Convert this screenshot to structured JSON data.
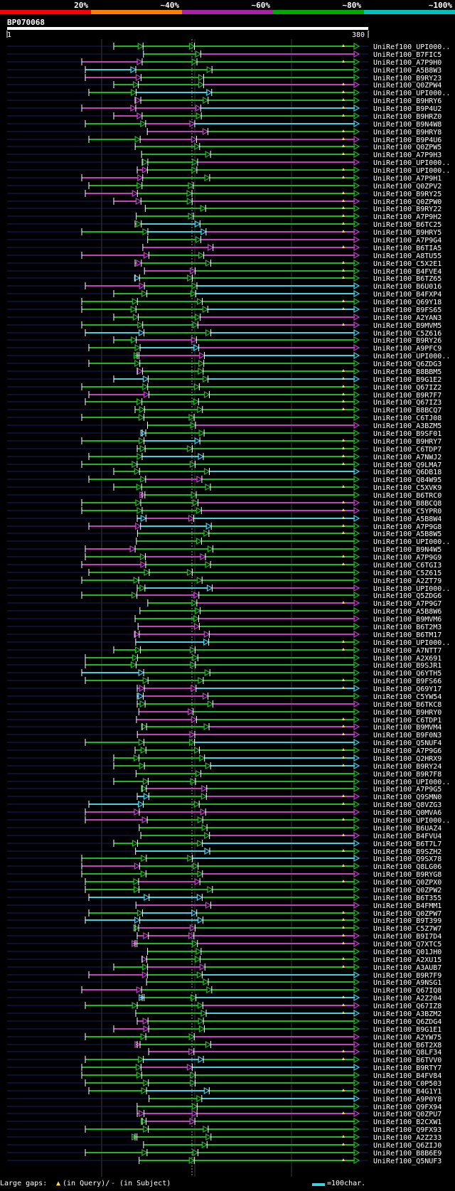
{
  "query_id": "BP070068",
  "scale": {
    "start": "1",
    "end": "380"
  },
  "identity_bar": [
    {
      "label": "20%",
      "color": "#ff0000"
    },
    {
      "label": "~40%",
      "color": "#ff7f00"
    },
    {
      "label": "~60%",
      "color": "#aa22aa"
    },
    {
      "label": "~80%",
      "color": "#00aa00"
    },
    {
      "label": "~100%",
      "color": "#00c0c0"
    }
  ],
  "colors": {
    "green": "#1db81d",
    "magenta": "#c040c0",
    "cyan": "#40d0e0",
    "navy": "#1c1c66",
    "guide": "#3a3a3a"
  },
  "footer": {
    "large_gaps": "Large gaps:",
    "in_query": "(in Query)/",
    "in_subject": "(in Subject)",
    "scale_note": "=100char."
  },
  "chart_data": {
    "type": "alignment",
    "query_length": 380,
    "subjects": [
      "UniRef100_UPI000..",
      "UniRef100_B7FIC5",
      "UniRef100_A7P9H0",
      "UniRef100_A5B8W3",
      "UniRef100_B9RY23",
      "UniRef100_Q0ZPW4",
      "UniRef100_UPI000..",
      "UniRef100_B9HRY6",
      "UniRef100_B9P4U2",
      "UniRef100_B9HRZ0",
      "UniRef100_B9N4W8",
      "UniRef100_B9HRY8",
      "UniRef100_B9P4U6",
      "UniRef100_Q0ZPW5",
      "UniRef100_A7P9H3",
      "UniRef100_UPI000..",
      "UniRef100_UPI000..",
      "UniRef100_A7P9H1",
      "UniRef100_Q0ZPV2",
      "UniRef100_B9RY25",
      "UniRef100_Q0ZPW0",
      "UniRef100_B9RY22",
      "UniRef100_A7P9H2",
      "UniRef100_B6TC25",
      "UniRef100_B9HRY5",
      "UniRef100_A7P9G4",
      "UniRef100_B6TIA5",
      "UniRef100_A8TU55",
      "UniRef100_C5X2E1",
      "UniRef100_B4FVE4",
      "UniRef100_B6TZ65",
      "UniRef100_B6U016",
      "UniRef100_B4FXP4",
      "UniRef100_Q69Y18",
      "UniRef100_B9FS65",
      "UniRef100_A2YAN3",
      "UniRef100_B9MVM5",
      "UniRef100_C5Z616",
      "UniRef100_B9RY26",
      "UniRef100_A9PFC9",
      "UniRef100_UPI000..",
      "UniRef100_Q6ZDG3",
      "UniRef100_B8BBM5",
      "UniRef100_B9G1E2",
      "UniRef100_Q67IZ2",
      "UniRef100_B9R7F7",
      "UniRef100_Q67IZ3",
      "UniRef100_B8BCQ7",
      "UniRef100_C6TJ08",
      "UniRef100_A3BZM5",
      "UniRef100_B9SF01",
      "UniRef100_B9HRY7",
      "UniRef100_C6TDP7",
      "UniRef100_A7NWJ2",
      "UniRef100_Q9LMA7",
      "UniRef100_Q6DB18",
      "UniRef100_Q84W95",
      "UniRef100_C5XVK9",
      "UniRef100_B6TRC0",
      "UniRef100_B8BCQ8",
      "UniRef100_C5YPR0",
      "UniRef100_A5B8W4",
      "UniRef100_A7P9G8",
      "UniRef100_A5B8W5",
      "UniRef100_UPI000..",
      "UniRef100_B9N4W5",
      "UniRef100_A7P9G9",
      "UniRef100_C6TGI3",
      "UniRef100_C5Z615",
      "UniRef100_A2ZT79",
      "UniRef100_UPI000..",
      "UniRef100_Q5ZDG6",
      "UniRef100_A7P9G7",
      "UniRef100_A5B8W6",
      "UniRef100_B9MVM6",
      "UniRef100_B6T2M3",
      "UniRef100_B6TM17",
      "UniRef100_UPI000..",
      "UniRef100_A7NTT7",
      "UniRef100_A2X691",
      "UniRef100_B9SJR1",
      "UniRef100_Q6YTH5",
      "UniRef100_B9FS66",
      "UniRef100_Q69Y17",
      "UniRef100_C5YW54",
      "UniRef100_B6TKC8",
      "UniRef100_B9HRY0",
      "UniRef100_C6TDP1",
      "UniRef100_B9MVM4",
      "UniRef100_B9F0N3",
      "UniRef100_Q5NUF4",
      "UniRef100_A7P9G6",
      "UniRef100_Q2HRX9",
      "UniRef100_B9RY24",
      "UniRef100_B9R7F8",
      "UniRef100_UPI000..",
      "UniRef100_A7P9G5",
      "UniRef100_Q9SMN0",
      "UniRef100_Q8VZG3",
      "UniRef100_Q0MVA6",
      "UniRef100_UPI000..",
      "UniRef100_B6UAZ4",
      "UniRef100_B4FVU4",
      "UniRef100_B6T7L7",
      "UniRef100_B9SZH2",
      "UniRef100_Q9SX78",
      "UniRef100_Q8LG06",
      "UniRef100_B9RYG8",
      "UniRef100_Q0ZPX0",
      "UniRef100_Q0ZPW2",
      "UniRef100_B6T355",
      "UniRef100_B4FMM1",
      "UniRef100_Q0ZPW7",
      "UniRef100_B9T399",
      "UniRef100_C5Z7W7",
      "UniRef100_B9I7D4",
      "UniRef100_Q7XTC5",
      "UniRef100_Q01JH0",
      "UniRef100_A2XU15",
      "UniRef100_A3AUB7",
      "UniRef100_B9R7F9",
      "UniRef100_A9NSG1",
      "UniRef100_Q67IQ8",
      "UniRef100_A2Z204",
      "UniRef100_Q67IZ8",
      "UniRef100_A3BZM2",
      "UniRef100_Q6ZDG4",
      "UniRef100_B9G1E1",
      "UniRef100_A2YW75",
      "UniRef100_B6T2X8",
      "UniRef100_Q8LF34",
      "UniRef100_B6TVV0",
      "UniRef100_B9RTY7",
      "UniRef100_B4FV84",
      "UniRef100_C0P503",
      "UniRef100_B4G1Y1",
      "UniRef100_A9P0Y8",
      "UniRef100_Q9FX94",
      "UniRef100_Q0ZPU7",
      "UniRef100_B2CXW1",
      "UniRef100_Q9FX93",
      "UniRef100_A2Z233",
      "UniRef100_Q6ZIJ0",
      "UniRef100_B8B6E9",
      "UniRef100_Q5NUF3"
    ]
  }
}
